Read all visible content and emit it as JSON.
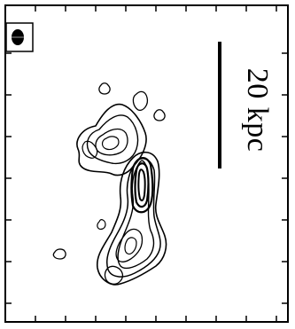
{
  "figure": {
    "scale_bar_label": "20 kpc",
    "colors": {
      "contour": "#000000",
      "frame": "#000000",
      "background": "#ffffff"
    },
    "beam_icon": "beam-ellipse-icon"
  }
}
